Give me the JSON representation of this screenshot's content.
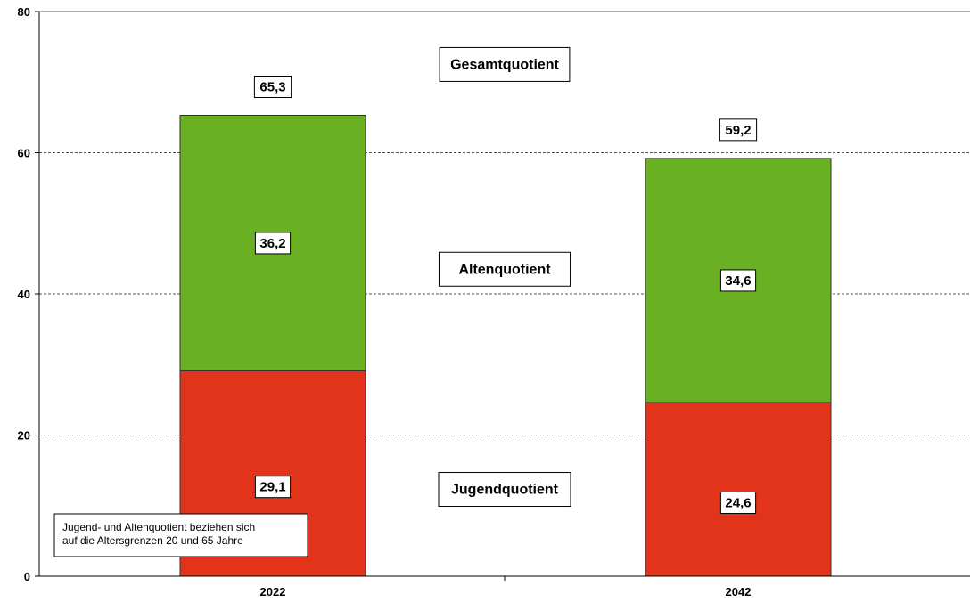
{
  "chart_data": {
    "type": "bar",
    "stacked": true,
    "categories": [
      "2022",
      "2042"
    ],
    "series": [
      {
        "name": "Jugendquotient",
        "values": [
          29.1,
          24.6
        ],
        "labels": [
          "29,1",
          "24,6"
        ],
        "color": "#e2341a"
      },
      {
        "name": "Altenquotient",
        "values": [
          36.2,
          34.6
        ],
        "labels": [
          "36,2",
          "34,6"
        ],
        "color": "#6ab023"
      }
    ],
    "totals": {
      "name": "Gesamtquotient",
      "values": [
        65.3,
        59.2
      ],
      "labels": [
        "65,3",
        "59,2"
      ]
    },
    "ylim": [
      0,
      80
    ],
    "yticks": [
      "0",
      "20",
      "40",
      "60",
      "80"
    ],
    "grid": true,
    "note": [
      "Jugend- und Altenquotient beziehen sich",
      "auf die Altersgrenzen 20 und 65 Jahre"
    ]
  }
}
